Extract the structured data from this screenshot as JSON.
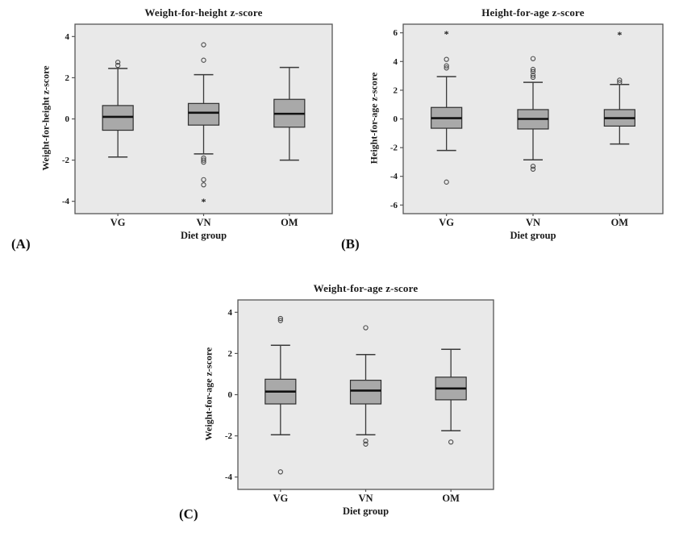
{
  "colors": {
    "background": "#ffffff",
    "plot_background": "#e9e9e9",
    "box_fill": "#a9a9a9",
    "box_stroke": "#2f2f2f",
    "median": "#111111",
    "whisker": "#3a3a3a",
    "frame": "#565656",
    "outlier": "#4a4a4a",
    "text": "#1a1a1a"
  },
  "chart_data": [
    {
      "type": "boxplot",
      "panel_label": "(A)",
      "title": "Weight-for-height z-score",
      "xlabel": "Diet group",
      "ylabel": "Weight-for-height z-score",
      "categories": [
        "VG",
        "VN",
        "OM"
      ],
      "yticks": [
        -4,
        -2,
        0,
        2,
        4
      ],
      "ylim": [
        -4.6,
        4.6
      ],
      "grid": false,
      "boxes": [
        {
          "category": "VG",
          "q1": -0.55,
          "median": 0.1,
          "q3": 0.65,
          "whisker_low": -1.85,
          "whisker_high": 2.45,
          "outliers": [
            2.6,
            2.75
          ],
          "extremes": []
        },
        {
          "category": "VN",
          "q1": -0.3,
          "median": 0.3,
          "q3": 0.75,
          "whisker_low": -1.7,
          "whisker_high": 2.15,
          "outliers": [
            3.6,
            2.85,
            -1.9,
            -2.0,
            -2.1,
            -2.95,
            -3.2
          ],
          "extremes": [
            -4.0
          ]
        },
        {
          "category": "OM",
          "q1": -0.4,
          "median": 0.25,
          "q3": 0.95,
          "whisker_low": -2.0,
          "whisker_high": 2.5,
          "outliers": [],
          "extremes": []
        }
      ]
    },
    {
      "type": "boxplot",
      "panel_label": "(B)",
      "title": "Height-for-age z-score",
      "xlabel": "Diet group",
      "ylabel": "Height-for-age z-score",
      "categories": [
        "VG",
        "VN",
        "OM"
      ],
      "yticks": [
        -6,
        -4,
        -2,
        0,
        2,
        4,
        6
      ],
      "ylim": [
        -6.6,
        6.6
      ],
      "grid": false,
      "boxes": [
        {
          "category": "VG",
          "q1": -0.65,
          "median": 0.05,
          "q3": 0.8,
          "whisker_low": -2.2,
          "whisker_high": 2.95,
          "outliers": [
            4.15,
            3.7,
            3.55,
            -4.4
          ],
          "extremes": [
            5.95
          ]
        },
        {
          "category": "VN",
          "q1": -0.7,
          "median": 0.0,
          "q3": 0.65,
          "whisker_low": -2.85,
          "whisker_high": 2.55,
          "outliers": [
            4.2,
            3.45,
            3.3,
            3.05,
            2.9,
            -3.3,
            -3.5
          ],
          "extremes": []
        },
        {
          "category": "OM",
          "q1": -0.5,
          "median": 0.05,
          "q3": 0.65,
          "whisker_low": -1.75,
          "whisker_high": 2.4,
          "outliers": [
            2.7,
            2.55
          ],
          "extremes": [
            5.9
          ]
        }
      ]
    },
    {
      "type": "boxplot",
      "panel_label": "(C)",
      "title": "Weight-for-age z-score",
      "xlabel": "Diet group",
      "ylabel": "Weight-for-age z-score",
      "categories": [
        "VG",
        "VN",
        "OM"
      ],
      "yticks": [
        -4,
        -2,
        0,
        2,
        4
      ],
      "ylim": [
        -4.6,
        4.6
      ],
      "grid": false,
      "boxes": [
        {
          "category": "VG",
          "q1": -0.45,
          "median": 0.15,
          "q3": 0.75,
          "whisker_low": -1.95,
          "whisker_high": 2.4,
          "outliers": [
            3.7,
            3.6,
            -3.75
          ],
          "extremes": []
        },
        {
          "category": "VN",
          "q1": -0.45,
          "median": 0.2,
          "q3": 0.7,
          "whisker_low": -1.95,
          "whisker_high": 1.95,
          "outliers": [
            3.25,
            -2.25,
            -2.4
          ],
          "extremes": []
        },
        {
          "category": "OM",
          "q1": -0.25,
          "median": 0.3,
          "q3": 0.85,
          "whisker_low": -1.75,
          "whisker_high": 2.2,
          "outliers": [
            -2.3
          ],
          "extremes": []
        }
      ]
    }
  ]
}
